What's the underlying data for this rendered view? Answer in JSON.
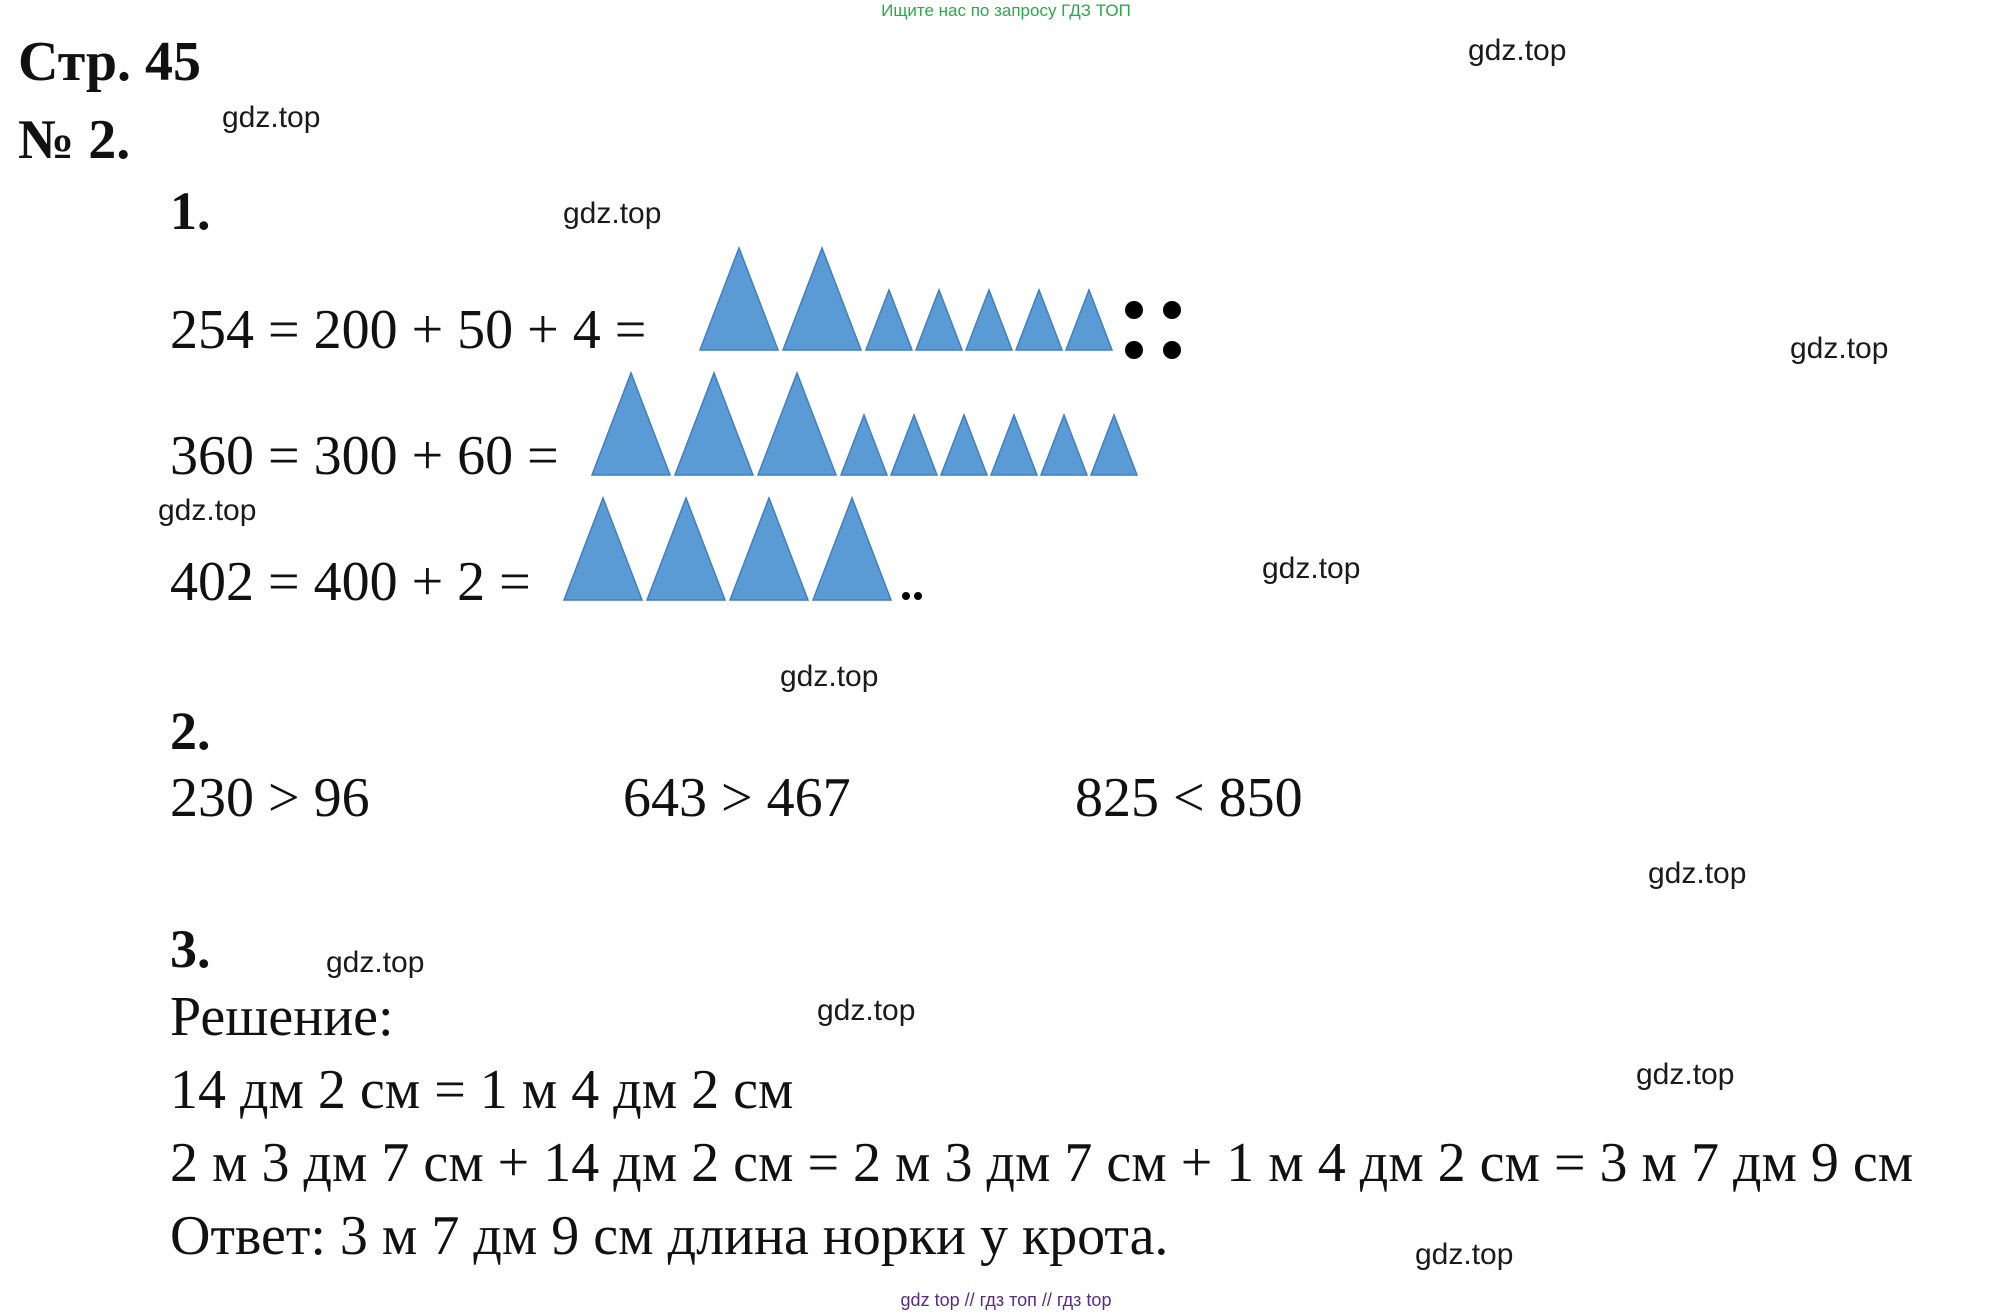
{
  "header": {
    "top_note": "Ищите нас по запросу ГДЗ ТОП",
    "page": "Стр. 45",
    "task": "№ 2."
  },
  "section1": {
    "number": "1.",
    "rows": [
      {
        "equation": "254 = 200 + 50 + 4 =",
        "hundreds": 2,
        "tens": 5,
        "ones": 4
      },
      {
        "equation": "360 = 300 + 60 =",
        "hundreds": 3,
        "tens": 6,
        "ones": 0
      },
      {
        "equation": "402 = 400 + 2 =",
        "hundreds": 4,
        "tens": 0,
        "ones": 2
      }
    ],
    "shape_color": "#5b9bd5"
  },
  "section2": {
    "number": "2.",
    "comparisons": [
      "230 > 96",
      "643 > 467",
      "825 < 850"
    ]
  },
  "section3": {
    "number": "3.",
    "heading": "Решение:",
    "line1": "14 дм 2 см = 1 м 4 дм 2 см",
    "line2": "2 м 3 дм 7 см + 14 дм 2 см = 2 м 3 дм 7 см + 1 м 4 дм 2 см =  3 м 7 дм 9 см",
    "answer": "Ответ: 3 м 7 дм 9 см длина норки у крота."
  },
  "watermark": "gdz.top",
  "footer": "gdz top  //  гдз топ  //  гдз top"
}
